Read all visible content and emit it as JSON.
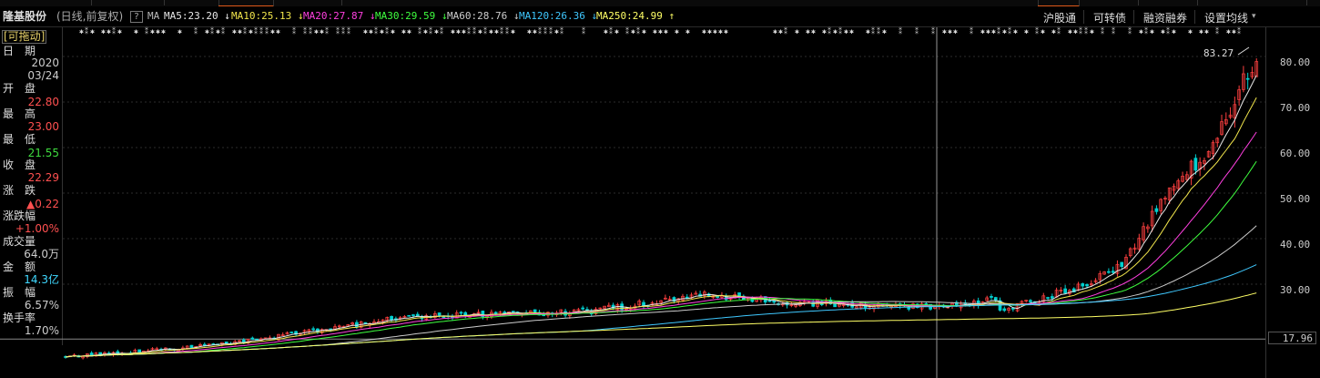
{
  "header": {
    "stock_name": "隆基股份",
    "period": "(日线,前复权)",
    "help": "?",
    "ma_prefix": "MA",
    "ma": [
      {
        "label": "MA5:23.20",
        "arrow": "↓",
        "color": "#e8e8e8"
      },
      {
        "label": "MA10:25.13",
        "arrow": "↓",
        "color": "#f2e64c"
      },
      {
        "label": "MA20:27.87",
        "arrow": "↓",
        "color": "#ff3fe0"
      },
      {
        "label": "MA30:29.59",
        "arrow": "↓",
        "color": "#3fff3f"
      },
      {
        "label": "MA60:28.76",
        "arrow": "↓",
        "color": "#cccccc"
      },
      {
        "label": "MA120:26.36",
        "arrow": "↓",
        "color": "#3fc8ff"
      },
      {
        "label": "MA250:24.99",
        "arrow": "↑",
        "color": "#ffff66"
      }
    ],
    "nav": [
      "沪股通",
      "可转债",
      "融资融券",
      "设置均线"
    ]
  },
  "sidebar": {
    "drag_label": "[可拖动]",
    "date_label": "日　期",
    "date_year": "2020",
    "date_md": "03/24",
    "open_label": "开　盘",
    "open": "22.80",
    "high_label": "最　高",
    "high": "23.00",
    "low_label": "最　低",
    "low": "21.55",
    "close_label": "收　盘",
    "close": "22.29",
    "change_label": "涨　跌",
    "change": "▲0.22",
    "pct_label": "涨跌幅",
    "pct": "+1.00%",
    "volume_label": "成交量",
    "volume": "64.0万",
    "amount_label": "金　额",
    "amount": "14.3亿",
    "amplitude_label": "振　幅",
    "amplitude": "6.57%",
    "turnover_label": "换手率",
    "turnover": "1.70%"
  },
  "price_axis": {
    "ticks": [
      "80.00",
      "70.00",
      "60.00",
      "50.00",
      "40.00",
      "30.00"
    ],
    "last_price": "17.96"
  },
  "peak_label": "83.27",
  "colors": {
    "up": "#ff4040",
    "down": "#00d0d0",
    "value_red": "#ff5050",
    "value_green": "#3fdc3f",
    "value_cyan": "#3fd8ff",
    "label": "#dddddd"
  }
}
